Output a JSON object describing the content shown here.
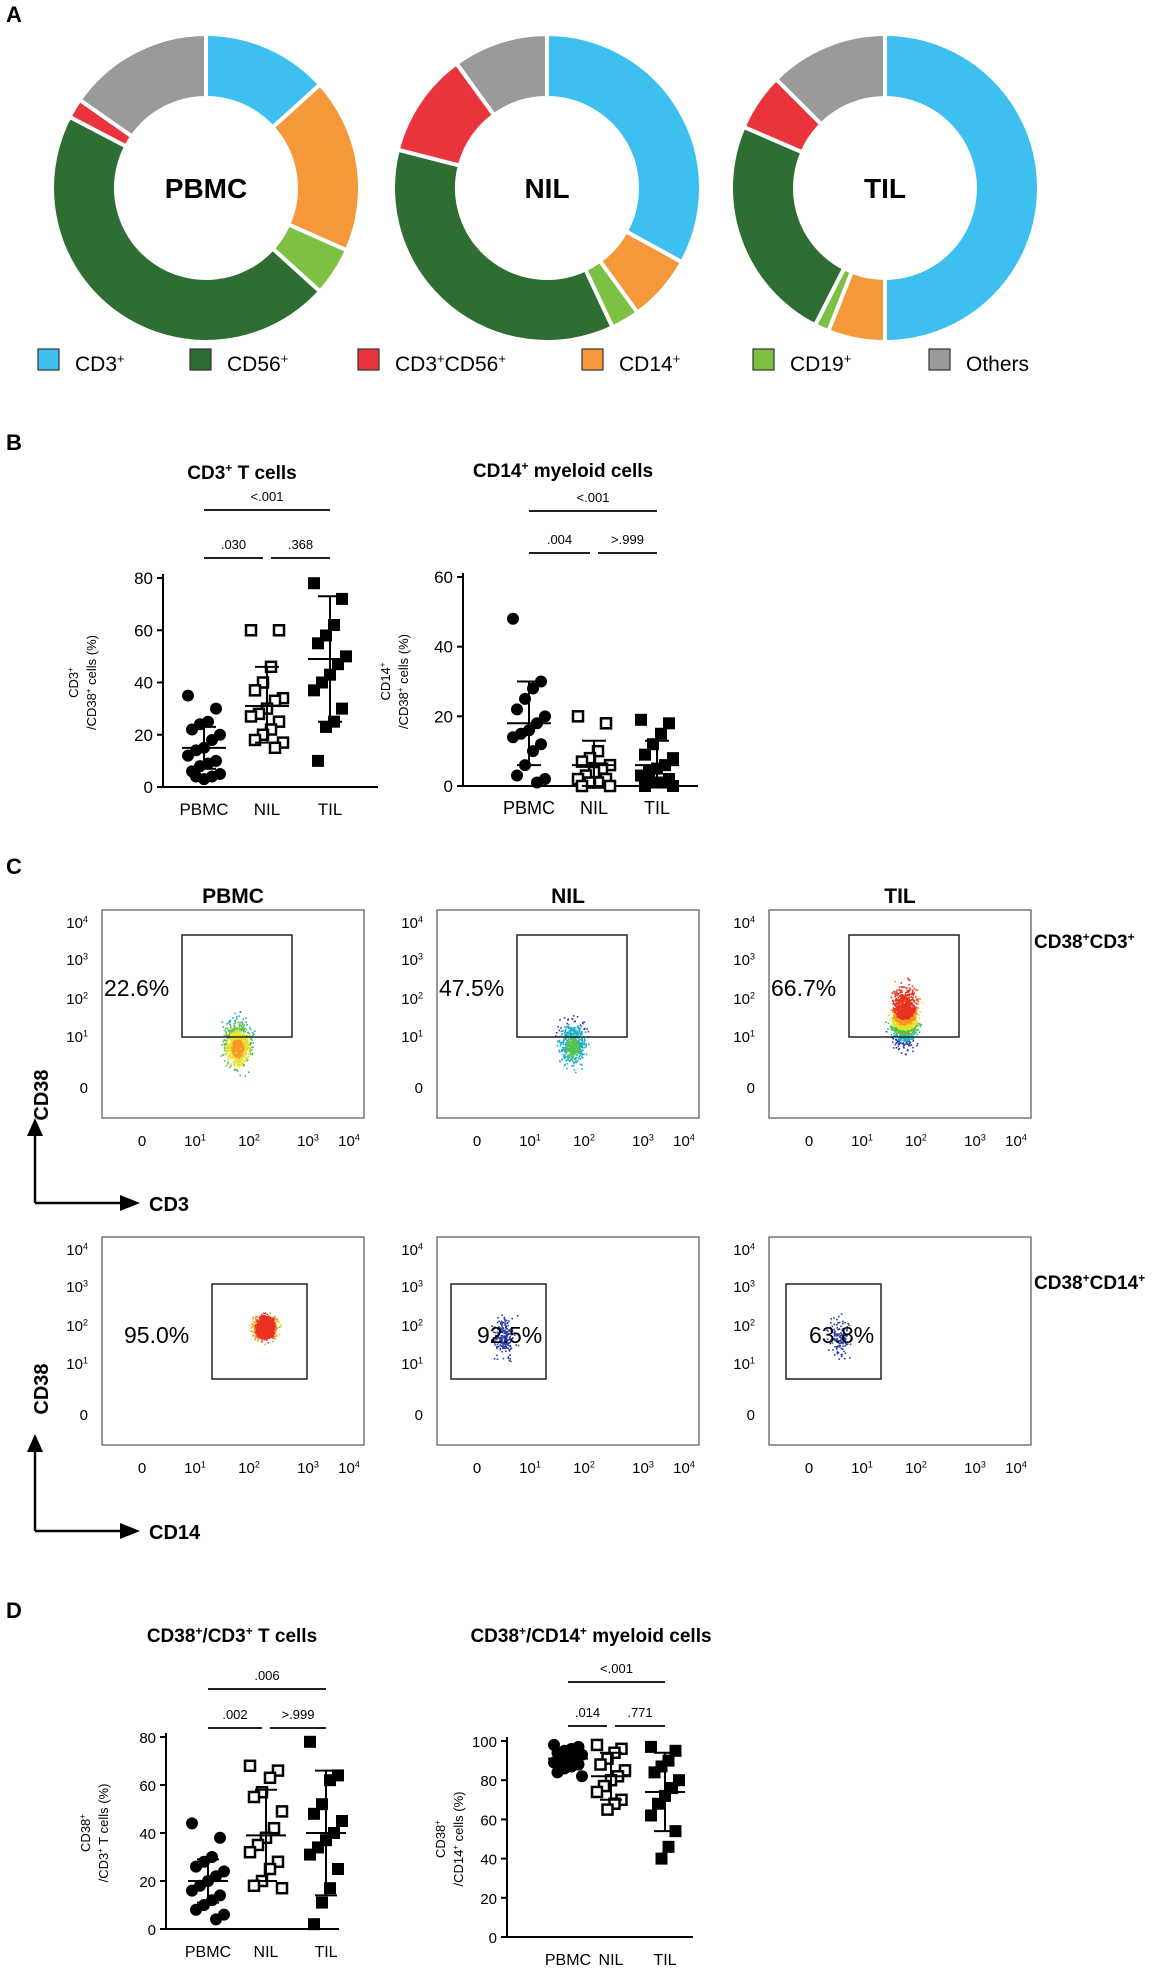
{
  "panels": {
    "A": {
      "letter": "A",
      "chart_data": [
        {
          "type": "pie",
          "title": "PBMC",
          "slices": [
            {
              "label": "CD3+",
              "value": 13
            },
            {
              "label": "CD14+",
              "value": 18
            },
            {
              "label": "CD19+",
              "value": 5
            },
            {
              "label": "CD56+",
              "value": 45
            },
            {
              "label": "CD3+CD56+",
              "value": 2
            },
            {
              "label": "Others",
              "value": 15
            }
          ]
        },
        {
          "type": "pie",
          "title": "NIL",
          "slices": [
            {
              "label": "CD3+",
              "value": 33
            },
            {
              "label": "CD14+",
              "value": 7
            },
            {
              "label": "CD19+",
              "value": 3
            },
            {
              "label": "CD56+",
              "value": 36
            },
            {
              "label": "CD3+CD56+",
              "value": 11
            },
            {
              "label": "Others",
              "value": 10
            }
          ]
        },
        {
          "type": "pie",
          "title": "TIL",
          "slices": [
            {
              "label": "CD3+",
              "value": 50
            },
            {
              "label": "CD14+",
              "value": 6
            },
            {
              "label": "CD19+",
              "value": 1.5
            },
            {
              "label": "CD56+",
              "value": 24
            },
            {
              "label": "CD3+CD56+",
              "value": 6
            },
            {
              "label": "Others",
              "value": 12.5
            }
          ]
        }
      ],
      "legend": [
        {
          "key": "CD3",
          "label": "CD3",
          "sup": "+",
          "color": "#3dbfef"
        },
        {
          "key": "CD56",
          "label": "CD56",
          "sup": "+",
          "color": "#2e6e32"
        },
        {
          "key": "CD3CD56",
          "label": "CD3",
          "sup": "+",
          "label2": "CD56",
          "sup2": "+",
          "color": "#e8343a"
        },
        {
          "key": "CD14",
          "label": "CD14",
          "sup": "+",
          "color": "#f4983a"
        },
        {
          "key": "CD19",
          "label": "CD19",
          "sup": "+",
          "color": "#7cc143"
        },
        {
          "key": "Others",
          "label": "Others",
          "sup": "",
          "color": "#9a9a9a"
        }
      ]
    },
    "B": {
      "letter": "B",
      "chart_data": [
        {
          "type": "scatter",
          "title": "CD3",
          "title_sup": "+",
          "title_rest": " T cells",
          "ylabel_top": "CD3",
          "ylabel_top_sup": "+",
          "ylabel_bottom": "/CD38",
          "ylabel_bottom_sup": "+",
          "ylabel_bottom_rest": " cells (%)",
          "categories": [
            "PBMC",
            "NIL",
            "TIL"
          ],
          "ylim": [
            0,
            80
          ],
          "yticks": [
            0,
            20,
            40,
            60,
            80
          ],
          "pvalues": [
            {
              "label": "<.001",
              "from": 0,
              "to": 2,
              "level": 1
            },
            {
              "label": ".030",
              "from": 0,
              "to": 1,
              "level": 0
            },
            {
              "label": ".368",
              "from": 1,
              "to": 2,
              "level": 0
            }
          ],
          "groups": [
            {
              "name": "PBMC",
              "marker": "filled-circle",
              "mean": 15,
              "sd_low": 7,
              "sd_high": 23,
              "values": [
                35,
                30,
                25,
                24,
                22,
                20,
                18,
                15,
                14,
                12,
                10,
                9,
                8,
                6,
                5,
                4,
                3,
                4
              ]
            },
            {
              "name": "NIL",
              "marker": "open-square",
              "mean": 31,
              "sd_low": 17,
              "sd_high": 46,
              "values": [
                60,
                60,
                46,
                40,
                37,
                34,
                33,
                30,
                28,
                27,
                25,
                22,
                20,
                18,
                17,
                15
              ]
            },
            {
              "name": "TIL",
              "marker": "filled-square",
              "mean": 49,
              "sd_low": 25,
              "sd_high": 73,
              "values": [
                78,
                72,
                62,
                58,
                55,
                50,
                47,
                43,
                40,
                37,
                30,
                25,
                23,
                10
              ]
            }
          ]
        },
        {
          "type": "scatter",
          "title": "CD14",
          "title_sup": "+",
          "title_rest": " myeloid cells",
          "ylabel_top": "CD14",
          "ylabel_top_sup": "+",
          "ylabel_bottom": "/CD38",
          "ylabel_bottom_sup": "+",
          "ylabel_bottom_rest": " cells (%)",
          "categories": [
            "PBMC",
            "NIL",
            "TIL"
          ],
          "ylim": [
            0,
            60
          ],
          "yticks": [
            0,
            20,
            40,
            60
          ],
          "pvalues": [
            {
              "label": "<.001",
              "from": 0,
              "to": 2,
              "level": 1
            },
            {
              "label": ".004",
              "from": 0,
              "to": 1,
              "level": 0
            },
            {
              "label": ">.999",
              "from": 1,
              "to": 2,
              "level": 0
            }
          ],
          "groups": [
            {
              "name": "PBMC",
              "marker": "filled-circle",
              "mean": 18,
              "sd_low": 6,
              "sd_high": 30,
              "values": [
                48,
                30,
                28,
                25,
                22,
                20,
                18,
                16,
                15,
                14,
                12,
                10,
                6,
                3,
                2,
                1
              ]
            },
            {
              "name": "NIL",
              "marker": "open-square",
              "mean": 6,
              "sd_low": 0,
              "sd_high": 13,
              "values": [
                20,
                18,
                10,
                8,
                7,
                6,
                5,
                4,
                3,
                2,
                2,
                1,
                1,
                0,
                0
              ]
            },
            {
              "name": "TIL",
              "marker": "filled-square",
              "mean": 6,
              "sd_low": 0,
              "sd_high": 13,
              "values": [
                19,
                18,
                15,
                12,
                9,
                8,
                6,
                5,
                4,
                3,
                2,
                1,
                1,
                0,
                0
              ]
            }
          ]
        }
      ]
    },
    "C": {
      "letter": "C",
      "columns": [
        "PBMC",
        "NIL",
        "TIL"
      ],
      "rows": [
        {
          "label": "CD38",
          "label_sup": "+",
          "label2": "CD3",
          "label2_sup": "+",
          "xaxis": "CD3",
          "yaxis": "CD38",
          "percents": [
            "22.6%",
            "47.5%",
            "66.7%"
          ],
          "density": [
            0.6,
            0.35,
            1.0
          ]
        },
        {
          "label": "CD38",
          "label_sup": "+",
          "label2": "CD14",
          "label2_sup": "+",
          "xaxis": "CD14",
          "yaxis": "CD38",
          "percents": [
            "95.0%",
            "92.5%",
            "63.8%"
          ],
          "density": [
            0.85,
            0.12,
            0.06
          ]
        }
      ],
      "axis_ticks": {
        "base": "10",
        "zero": "0",
        "exponents": [
          "1",
          "2",
          "3",
          "4"
        ]
      }
    },
    "D": {
      "letter": "D",
      "chart_data": [
        {
          "type": "scatter",
          "title": "CD38",
          "title_sup": "+",
          "title_rest": "/CD3",
          "title_sup2": "+",
          "title_rest2": " T cells",
          "ylabel_top": "CD38",
          "ylabel_top_sup": "+",
          "ylabel_bottom": "/CD3",
          "ylabel_bottom_sup": "+",
          "ylabel_bottom_rest": " T cells (%)",
          "categories": [
            "PBMC",
            "NIL",
            "TIL"
          ],
          "ylim": [
            0,
            80
          ],
          "yticks": [
            0,
            20,
            40,
            60,
            80
          ],
          "pvalues": [
            {
              "label": ".006",
              "from": 0,
              "to": 2,
              "level": 1
            },
            {
              "label": ".002",
              "from": 0,
              "to": 1,
              "level": 0
            },
            {
              "label": ">.999",
              "from": 1,
              "to": 2,
              "level": 0
            }
          ],
          "groups": [
            {
              "name": "PBMC",
              "marker": "filled-circle",
              "mean": 20,
              "sd_low": 11,
              "sd_high": 29,
              "values": [
                44,
                38,
                30,
                28,
                26,
                24,
                22,
                20,
                18,
                16,
                14,
                12,
                10,
                8,
                6,
                4
              ]
            },
            {
              "name": "NIL",
              "marker": "open-square",
              "mean": 39,
              "sd_low": 20,
              "sd_high": 58,
              "values": [
                68,
                66,
                63,
                57,
                55,
                49,
                42,
                38,
                35,
                32,
                28,
                25,
                20,
                18,
                17
              ]
            },
            {
              "name": "TIL",
              "marker": "filled-square",
              "mean": 40,
              "sd_low": 14,
              "sd_high": 66,
              "values": [
                78,
                64,
                62,
                52,
                48,
                45,
                40,
                37,
                34,
                31,
                25,
                17,
                11,
                2
              ]
            }
          ]
        },
        {
          "type": "scatter",
          "title": "CD38",
          "title_sup": "+",
          "title_rest": "/CD14",
          "title_sup2": "+",
          "title_rest2": " myeloid cells",
          "ylabel_top": "CD38",
          "ylabel_top_sup": "+",
          "ylabel_bottom": "/CD14",
          "ylabel_bottom_sup": "+",
          "ylabel_bottom_rest": " cells (%)",
          "categories": [
            "PBMC",
            "NIL",
            "TIL"
          ],
          "ylim": [
            0,
            100
          ],
          "yticks": [
            0,
            20,
            40,
            60,
            80,
            100
          ],
          "pvalues": [
            {
              "label": "<.001",
              "from": 0,
              "to": 2,
              "level": 1
            },
            {
              "label": ".014",
              "from": 0,
              "to": 1,
              "level": 0
            },
            {
              "label": ".771",
              "from": 1,
              "to": 2,
              "level": 0
            }
          ],
          "groups": [
            {
              "name": "PBMC",
              "marker": "filled-circle",
              "mean": 91,
              "sd_low": 86,
              "sd_high": 96,
              "values": [
                98,
                97,
                96,
                95,
                94,
                93,
                92,
                91,
                90,
                89,
                88,
                87,
                86,
                84,
                82
              ]
            },
            {
              "name": "NIL",
              "marker": "open-square",
              "mean": 82,
              "sd_low": 70,
              "sd_high": 94,
              "values": [
                98,
                96,
                94,
                91,
                88,
                85,
                82,
                80,
                77,
                74,
                70,
                68,
                65
              ]
            },
            {
              "name": "TIL",
              "marker": "filled-square",
              "mean": 74,
              "sd_low": 54,
              "sd_high": 94,
              "values": [
                97,
                95,
                90,
                87,
                84,
                80,
                76,
                72,
                68,
                62,
                54,
                46,
                40
              ]
            }
          ]
        }
      ]
    }
  }
}
